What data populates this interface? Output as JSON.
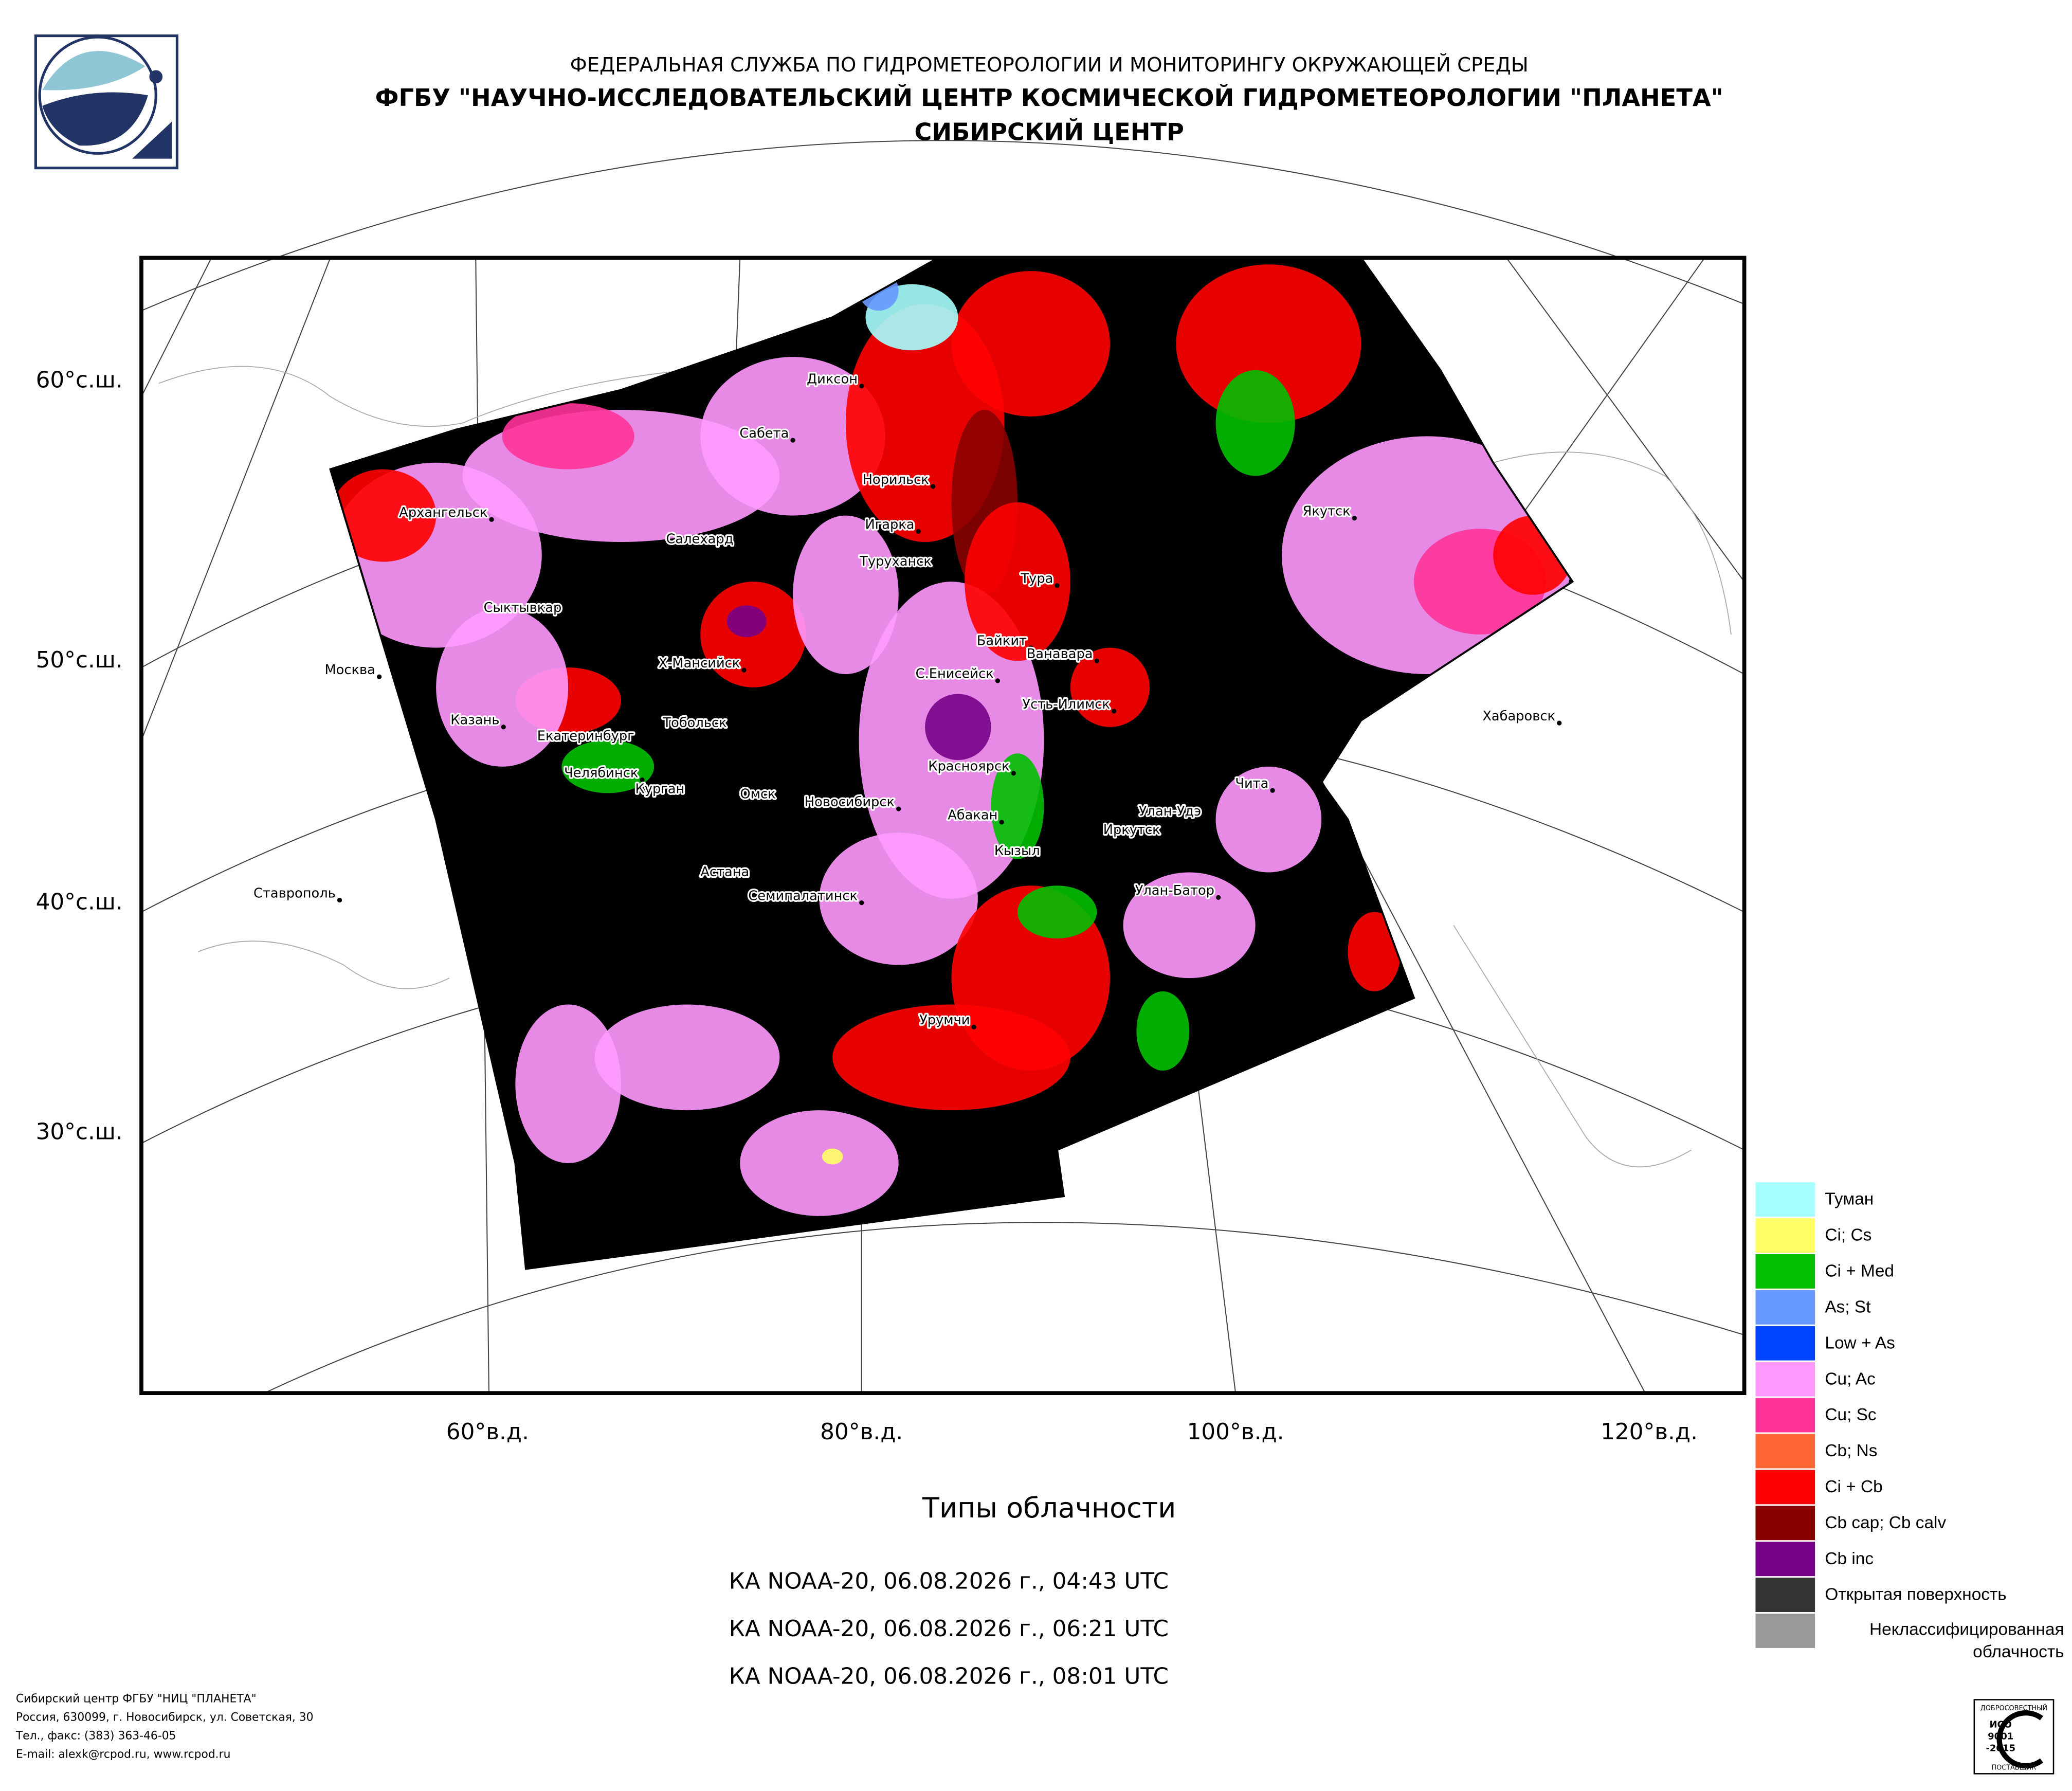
{
  "header": {
    "line1": "ФЕДЕРАЛЬНАЯ СЛУЖБА ПО ГИДРОМЕТЕОРОЛОГИИ И МОНИТОРИНГУ ОКРУЖАЮЩЕЙ СРЕДЫ",
    "line2": "ФГБУ \"НАУЧНО-ИССЛЕДОВАТЕЛЬСКИЙ ЦЕНТР КОСМИЧЕСКОЙ ГИДРОМЕТЕОРОЛОГИИ \"ПЛАНЕТА\"",
    "line3": "СИБИРСКИЙ ЦЕНТР"
  },
  "map": {
    "lat_labels": [
      "60°с.ш.",
      "50°с.ш.",
      "40°с.ш.",
      "30°с.ш."
    ],
    "lon_labels": [
      "60°в.д.",
      "80°в.д.",
      "100°в.д.",
      "120°в.д."
    ],
    "cities": [
      "Диксон",
      "Сабета",
      "Норильск",
      "Архангельск",
      "Игарка",
      "Салехард",
      "Туруханск",
      "Тура",
      "Якутск",
      "Сыктывкар",
      "Байкит",
      "Ванавара",
      "Х-Мансийск",
      "С.Енисейск",
      "Москва",
      "Усть-Илимск",
      "Хабаровск",
      "Казань",
      "Тобольск",
      "Екатеринбург",
      "Челябинск",
      "Красноярск",
      "Чита",
      "Курган",
      "Омск",
      "Новосибирск",
      "Улан-Удэ",
      "Абакан",
      "Иркутск",
      "Кызыл",
      "Астана",
      "Ставрополь",
      "Семипалатинск",
      "Улан-Батор",
      "Урумчи"
    ]
  },
  "legend": [
    {
      "label": "Туман",
      "color": "#a6ffff"
    },
    {
      "label": "Ci; Cs",
      "color": "#ffff66"
    },
    {
      "label": "Ci + Med",
      "color": "#00c000"
    },
    {
      "label": "As; St",
      "color": "#6699ff"
    },
    {
      "label": "Low + As",
      "color": "#0044ff"
    },
    {
      "label": "Cu; Ac",
      "color": "#ff99ff"
    },
    {
      "label": "Cu; Sc",
      "color": "#ff3399"
    },
    {
      "label": "Cb; Ns",
      "color": "#ff6633"
    },
    {
      "label": "Ci + Cb",
      "color": "#ff0000"
    },
    {
      "label": "Cb cap; Cb calv",
      "color": "#880000"
    },
    {
      "label": "Cb inc",
      "color": "#770088"
    },
    {
      "label": "Открытая поверхность",
      "color": "#333333"
    },
    {
      "label": "Неклассифицированная облачность",
      "color": "#999999"
    }
  ],
  "title": "Типы облачности",
  "passes": [
    "КА NOAA-20, 06.08.2026 г., 04:43 UTC",
    "КА NOAA-20, 06.08.2026 г., 06:21 UTC",
    "КА NOAA-20, 06.08.2026 г., 08:01 UTC"
  ],
  "footer": [
    "Сибирский центр ФГБУ \"НИЦ \"ПЛАНЕТА\"",
    "Россия, 630099, г. Новосибирск, ул. Советская, 30",
    "Тел., факс: (383) 363-46-05",
    "E-mail: alexk@rcpod.ru, www.rcpod.ru"
  ],
  "badge": {
    "top": "ДОБРОСОВЕСТНЫЙ",
    "line1": "ИСО",
    "line2": "9001",
    "line3": "-2015",
    "bottom": "ПОСТАВЩИК"
  }
}
